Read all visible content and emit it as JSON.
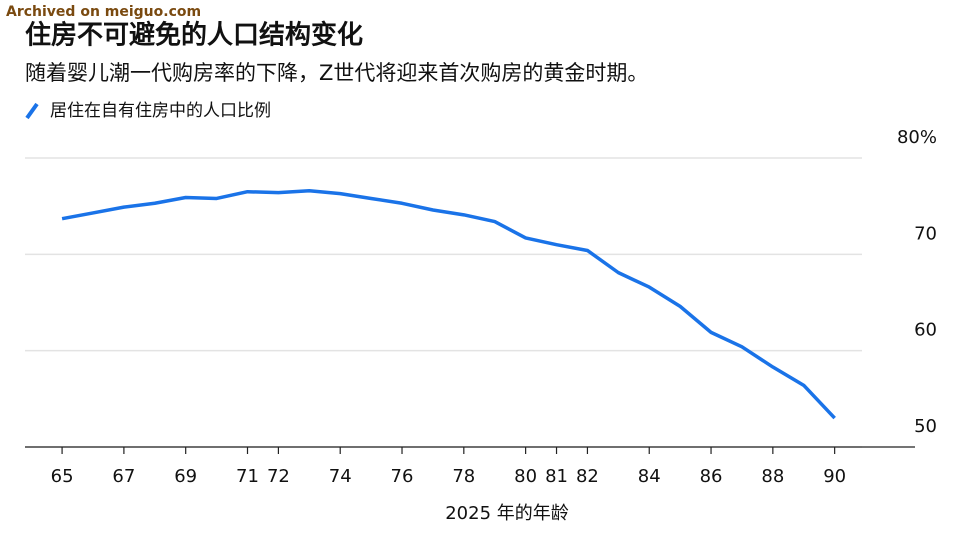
{
  "watermark": "Archived on meiguo.com",
  "chart_data": {
    "type": "line",
    "title": "住房不可避免的人口结构变化",
    "subtitle": "随着婴儿潮一代购房率的下降，Z世代将迎来首次购房的黄金时期。",
    "x_label": "2025 年的年龄",
    "x": [
      65,
      66,
      67,
      68,
      69,
      70,
      71,
      72,
      73,
      74,
      75,
      76,
      77,
      78,
      79,
      80,
      81,
      82,
      83,
      84,
      85,
      86,
      87,
      88,
      89,
      90
    ],
    "series": [
      {
        "name": "居住在自有住房中的人口比例",
        "color": "#1a73e8",
        "values": [
          73.7,
          74.3,
          74.9,
          75.3,
          75.9,
          75.8,
          76.5,
          76.4,
          76.6,
          76.3,
          75.8,
          75.3,
          74.6,
          74.1,
          73.4,
          71.7,
          71.0,
          70.4,
          68.1,
          66.6,
          64.6,
          61.9,
          60.4,
          58.3,
          56.4,
          53.0
        ]
      }
    ],
    "xlim": [
      63.8,
      92.6
    ],
    "xticks": [
      65,
      67,
      69,
      71,
      72,
      74,
      76,
      78,
      80,
      81,
      82,
      84,
      86,
      88,
      90
    ],
    "ylim": [
      50,
      80
    ],
    "yticks": [
      50,
      60,
      70,
      {
        "value": 80,
        "label": "80%"
      }
    ],
    "grid": true
  }
}
